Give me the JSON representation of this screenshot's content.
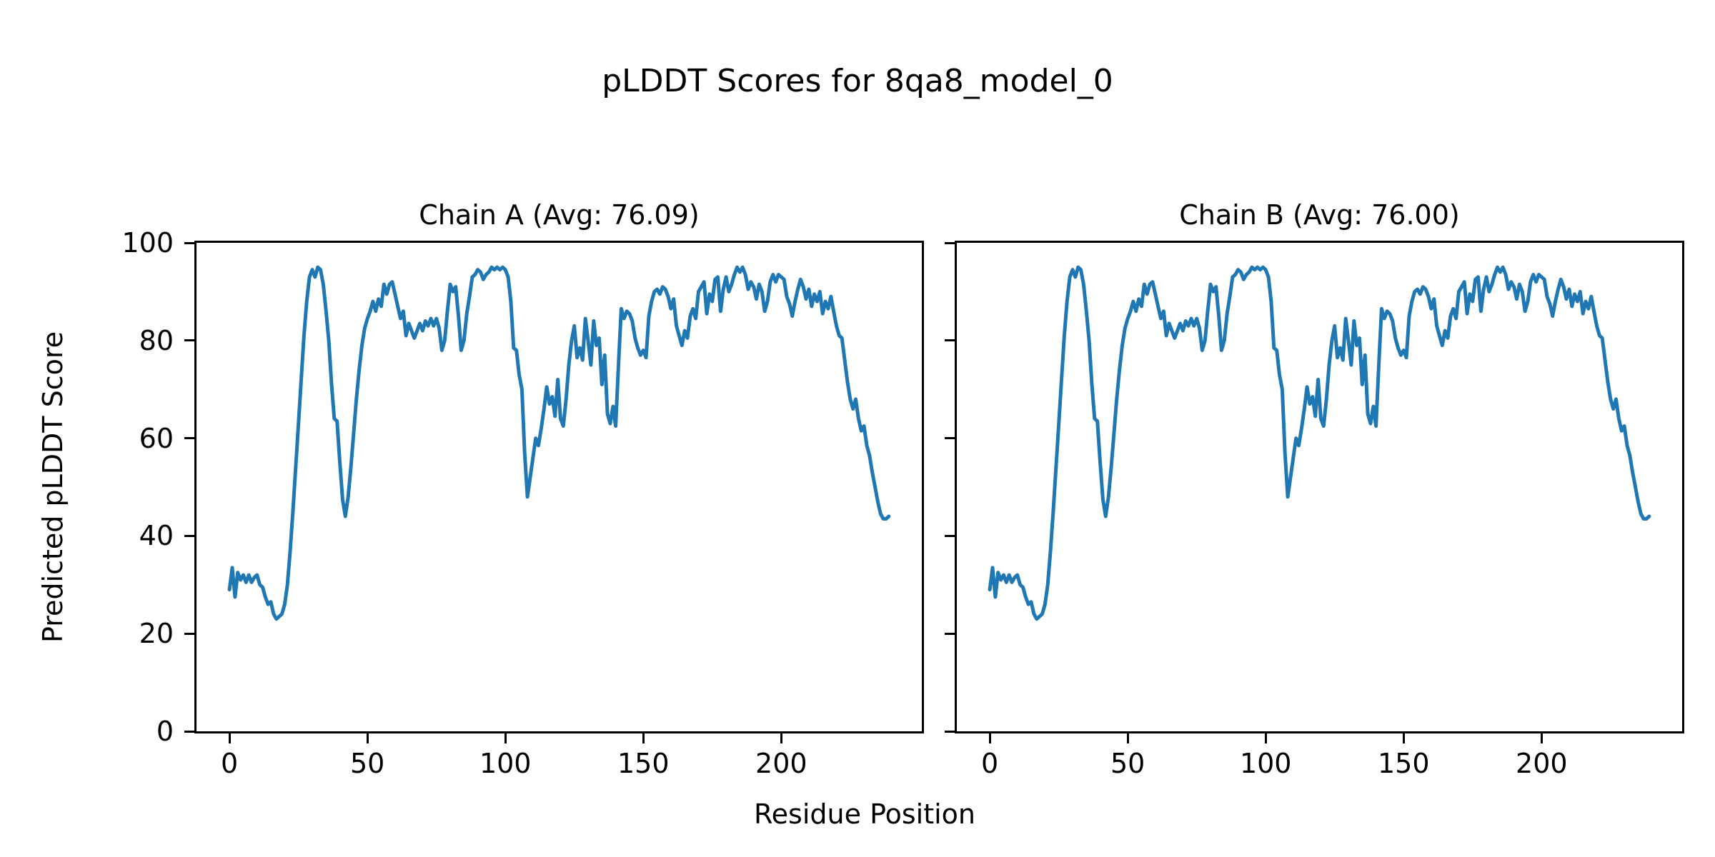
{
  "figure": {
    "title": "pLDDT Scores for 8qa8_model_0",
    "xlabel": "Residue Position",
    "ylabel": "Predicted pLDDT Score",
    "line_color": "#1f77b4",
    "background_color": "#ffffff",
    "text_color": "#000000"
  },
  "chart_data": [
    {
      "type": "line",
      "title": "Chain A (Avg: 76.09)",
      "chain": "A",
      "avg_plddt": "76.09",
      "xlabel": "Residue Position",
      "ylabel": "Predicted pLDDT Score",
      "x_start": 0,
      "x_step": 1,
      "xlim": [
        -11.95,
        250.95
      ],
      "ylim": [
        0,
        100
      ],
      "xticks": [
        0,
        50,
        100,
        150,
        200
      ],
      "yticks": [
        0,
        20,
        40,
        60,
        80,
        100
      ],
      "show_y_tick_labels": true,
      "legend": "none",
      "grid": false,
      "values": [
        29,
        33.5,
        27.5,
        32.5,
        31,
        32,
        30.5,
        32,
        30.5,
        31.5,
        32,
        30,
        29.5,
        27.5,
        26,
        26.5,
        24,
        23,
        23.5,
        24,
        26,
        30,
        37,
        45,
        54,
        63,
        72,
        81,
        88,
        93,
        94.5,
        93,
        95,
        94.5,
        91.5,
        86,
        80,
        71,
        64,
        63.5,
        55,
        47.5,
        44,
        48,
        54,
        61,
        68,
        74,
        79,
        82.5,
        84.5,
        86,
        88,
        86,
        88.5,
        87,
        91.5,
        89.5,
        91.5,
        92,
        89.5,
        87,
        84.5,
        86,
        81,
        83.5,
        82,
        80.5,
        82,
        83.5,
        82,
        84,
        83,
        84.5,
        83,
        84.5,
        82.5,
        78,
        80,
        86,
        91.5,
        90,
        91,
        85,
        78,
        80,
        85.5,
        89,
        93,
        93.5,
        94.5,
        94,
        92.5,
        93.5,
        94,
        95,
        94.5,
        95,
        94.5,
        95,
        94.5,
        93,
        88,
        78.5,
        78,
        73,
        70,
        57,
        48,
        52,
        56,
        60,
        58.5,
        62,
        66,
        70.5,
        67,
        68.5,
        64.5,
        72,
        64,
        62.5,
        68,
        75,
        80,
        83,
        76.5,
        78.5,
        76,
        84.5,
        80,
        75,
        84,
        79,
        80.5,
        71,
        77,
        65,
        63,
        66.5,
        62.5,
        75,
        86.5,
        84.5,
        86,
        85.5,
        84,
        80.5,
        78.5,
        77,
        78,
        76.5,
        85,
        88,
        90,
        90.5,
        89.5,
        91,
        90.5,
        89,
        86.5,
        88.5,
        83,
        81,
        79,
        82,
        80.5,
        85,
        86.5,
        84.5,
        90,
        91,
        92,
        85.5,
        89.5,
        88,
        92.5,
        93,
        86,
        90.5,
        93,
        90,
        91.5,
        93.5,
        95,
        94,
        95,
        93.5,
        90.5,
        92,
        91,
        88.5,
        91.5,
        90,
        86,
        88,
        92,
        93.5,
        92,
        93.5,
        93,
        92.5,
        89,
        87.5,
        85,
        88,
        90.5,
        92.5,
        91,
        88.5,
        90.5,
        87,
        89.5,
        88,
        90,
        85.5,
        88,
        86.5,
        89,
        86,
        83,
        81,
        80.5,
        76,
        71.5,
        68,
        66,
        68,
        64,
        61.5,
        62.5,
        58.5,
        56.5,
        53,
        50,
        47,
        44.5,
        43.5,
        43.5,
        44
      ]
    },
    {
      "type": "line",
      "title": "Chain B (Avg: 76.00)",
      "chain": "B",
      "avg_plddt": "76.00",
      "xlabel": "Residue Position",
      "ylabel": "Predicted pLDDT Score",
      "x_start": 0,
      "x_step": 1,
      "xlim": [
        -11.95,
        250.95
      ],
      "ylim": [
        0,
        100
      ],
      "xticks": [
        0,
        50,
        100,
        150,
        200
      ],
      "yticks": [
        0,
        20,
        40,
        60,
        80,
        100
      ],
      "show_y_tick_labels": false,
      "legend": "none",
      "grid": false,
      "values": [
        29,
        33.5,
        27.5,
        32.5,
        31,
        32,
        30.5,
        32,
        30.5,
        31.5,
        32,
        30,
        29.5,
        27.5,
        26,
        26.5,
        24,
        23,
        23.5,
        24,
        26,
        30,
        37,
        45,
        54,
        63,
        72,
        81,
        88,
        93,
        94.5,
        93,
        95,
        94.5,
        91.5,
        86,
        80,
        71,
        64,
        63.5,
        55,
        47.5,
        44,
        48,
        54,
        61,
        68,
        74,
        79,
        82.5,
        84.5,
        86,
        88,
        86,
        88.5,
        87,
        91.5,
        89.5,
        91.5,
        92,
        89.5,
        87,
        84.5,
        86,
        81,
        83.5,
        82,
        80.5,
        82,
        83.5,
        82,
        84,
        83,
        84.5,
        83,
        84.5,
        82.5,
        78,
        80,
        86,
        91.5,
        90,
        91,
        85,
        78,
        80,
        85.5,
        89,
        93,
        93.5,
        94.5,
        94,
        92.5,
        93.5,
        94,
        95,
        94.5,
        95,
        94.5,
        95,
        94.5,
        93,
        88,
        78.5,
        78,
        73,
        70,
        57,
        48,
        52,
        56,
        60,
        58.5,
        62,
        66,
        70.5,
        67,
        68.5,
        64.5,
        72,
        64,
        62.5,
        68,
        75,
        80,
        83,
        76.5,
        78.5,
        76,
        84.5,
        80,
        75,
        84,
        79,
        80.5,
        71,
        77,
        65,
        63,
        66.5,
        62.5,
        75,
        86.5,
        84.5,
        86,
        85.5,
        84,
        80.5,
        78.5,
        77,
        78,
        76.5,
        85,
        88,
        90,
        90.5,
        89.5,
        91,
        90.5,
        89,
        86.5,
        88.5,
        83,
        81,
        79,
        82,
        80.5,
        85,
        86.5,
        84.5,
        90,
        91,
        92,
        85.5,
        89.5,
        88,
        92.5,
        93,
        86,
        90.5,
        93,
        90,
        91.5,
        93.5,
        95,
        94,
        95,
        93.5,
        90.5,
        92,
        91,
        88.5,
        91.5,
        90,
        86,
        88,
        92,
        93.5,
        92,
        93.5,
        93,
        92.5,
        89,
        87.5,
        85,
        88,
        90.5,
        92.5,
        91,
        88.5,
        90.5,
        87,
        89.5,
        88,
        90,
        85.5,
        88,
        86.5,
        89,
        86,
        83,
        81,
        80.5,
        76,
        71.5,
        68,
        66,
        68,
        64,
        61.5,
        62.5,
        58.5,
        56.5,
        53,
        50,
        47,
        44.5,
        43.5,
        43.5,
        44
      ]
    }
  ]
}
